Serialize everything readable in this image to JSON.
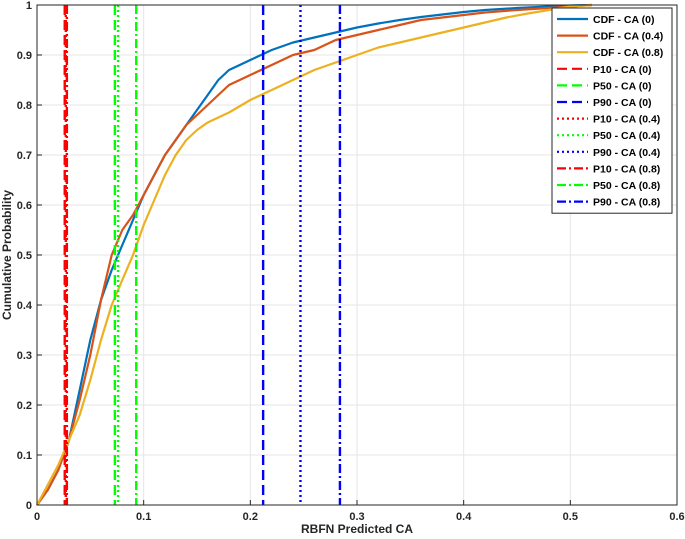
{
  "chart_data": {
    "type": "line",
    "xlabel": "RBFN Predicted CA",
    "ylabel": "Cumulative Probability",
    "xlim": [
      0,
      0.6
    ],
    "ylim": [
      0,
      1
    ],
    "xticks": [
      "0",
      "0.1",
      "0.2",
      "0.3",
      "0.4",
      "0.5",
      "0.6"
    ],
    "yticks": [
      "0",
      "0.1",
      "0.2",
      "0.3",
      "0.4",
      "0.5",
      "0.6",
      "0.7",
      "0.8",
      "0.9",
      "1"
    ],
    "grid": true,
    "legend_position": "top-right",
    "series": [
      {
        "name": "CDF - CA (0)",
        "kind": "cdf",
        "color": "#0072BD",
        "style": "solid",
        "x": [
          0,
          0.01,
          0.02,
          0.03,
          0.04,
          0.05,
          0.06,
          0.07,
          0.08,
          0.09,
          0.1,
          0.11,
          0.12,
          0.13,
          0.14,
          0.15,
          0.16,
          0.17,
          0.18,
          0.19,
          0.2,
          0.21,
          0.22,
          0.24,
          0.26,
          0.28,
          0.3,
          0.32,
          0.34,
          0.36,
          0.38,
          0.4,
          0.42,
          0.45,
          0.48,
          0.5,
          0.52
        ],
        "y": [
          0,
          0.03,
          0.07,
          0.13,
          0.23,
          0.33,
          0.41,
          0.47,
          0.52,
          0.57,
          0.62,
          0.66,
          0.7,
          0.73,
          0.76,
          0.79,
          0.82,
          0.85,
          0.87,
          0.88,
          0.89,
          0.9,
          0.91,
          0.925,
          0.935,
          0.945,
          0.955,
          0.963,
          0.97,
          0.976,
          0.981,
          0.986,
          0.99,
          0.994,
          0.997,
          0.999,
          1
        ]
      },
      {
        "name": "CDF - CA (0.4)",
        "kind": "cdf",
        "color": "#D95319",
        "style": "solid",
        "x": [
          0,
          0.01,
          0.02,
          0.03,
          0.04,
          0.05,
          0.06,
          0.07,
          0.08,
          0.09,
          0.1,
          0.11,
          0.12,
          0.13,
          0.14,
          0.15,
          0.16,
          0.17,
          0.18,
          0.19,
          0.2,
          0.22,
          0.24,
          0.26,
          0.28,
          0.3,
          0.32,
          0.34,
          0.36,
          0.38,
          0.4,
          0.42,
          0.45,
          0.48,
          0.5,
          0.52
        ],
        "y": [
          0,
          0.03,
          0.07,
          0.13,
          0.21,
          0.3,
          0.41,
          0.5,
          0.55,
          0.58,
          0.62,
          0.66,
          0.7,
          0.73,
          0.76,
          0.78,
          0.8,
          0.82,
          0.84,
          0.85,
          0.86,
          0.88,
          0.9,
          0.91,
          0.93,
          0.94,
          0.95,
          0.96,
          0.97,
          0.975,
          0.98,
          0.985,
          0.99,
          0.994,
          0.997,
          1
        ]
      },
      {
        "name": "CDF - CA (0.8)",
        "kind": "cdf",
        "color": "#EDB120",
        "style": "solid",
        "x": [
          0,
          0.01,
          0.02,
          0.03,
          0.04,
          0.05,
          0.06,
          0.07,
          0.08,
          0.09,
          0.1,
          0.11,
          0.12,
          0.13,
          0.14,
          0.15,
          0.16,
          0.17,
          0.18,
          0.2,
          0.22,
          0.24,
          0.26,
          0.28,
          0.3,
          0.32,
          0.34,
          0.36,
          0.38,
          0.4,
          0.42,
          0.44,
          0.46,
          0.48,
          0.5,
          0.52
        ],
        "y": [
          0,
          0.04,
          0.08,
          0.13,
          0.18,
          0.25,
          0.33,
          0.4,
          0.45,
          0.5,
          0.56,
          0.61,
          0.66,
          0.7,
          0.73,
          0.75,
          0.765,
          0.775,
          0.785,
          0.81,
          0.83,
          0.85,
          0.87,
          0.885,
          0.9,
          0.915,
          0.925,
          0.935,
          0.945,
          0.955,
          0.965,
          0.975,
          0.983,
          0.99,
          0.997,
          1
        ]
      },
      {
        "name": "P10 - CA (0)",
        "kind": "vline",
        "color": "#FF0000",
        "style": "dashed",
        "x": 0.026
      },
      {
        "name": "P50 - CA (0)",
        "kind": "vline",
        "color": "#00FF00",
        "style": "dashed",
        "x": 0.073
      },
      {
        "name": "P90 - CA (0)",
        "kind": "vline",
        "color": "#0000FF",
        "style": "dashed",
        "x": 0.212
      },
      {
        "name": "P10 - CA (0.4)",
        "kind": "vline",
        "color": "#FF0000",
        "style": "dotted",
        "x": 0.027
      },
      {
        "name": "P50 - CA (0.4)",
        "kind": "vline",
        "color": "#00FF00",
        "style": "dotted",
        "x": 0.076
      },
      {
        "name": "P90 - CA (0.4)",
        "kind": "vline",
        "color": "#0000FF",
        "style": "dotted",
        "x": 0.247
      },
      {
        "name": "P10 - CA (0.8)",
        "kind": "vline",
        "color": "#FF0000",
        "style": "dashdot",
        "x": 0.028
      },
      {
        "name": "P50 - CA (0.8)",
        "kind": "vline",
        "color": "#00FF00",
        "style": "dashdot",
        "x": 0.093
      },
      {
        "name": "P90 - CA (0.8)",
        "kind": "vline",
        "color": "#0000FF",
        "style": "dashdot",
        "x": 0.284
      }
    ]
  }
}
